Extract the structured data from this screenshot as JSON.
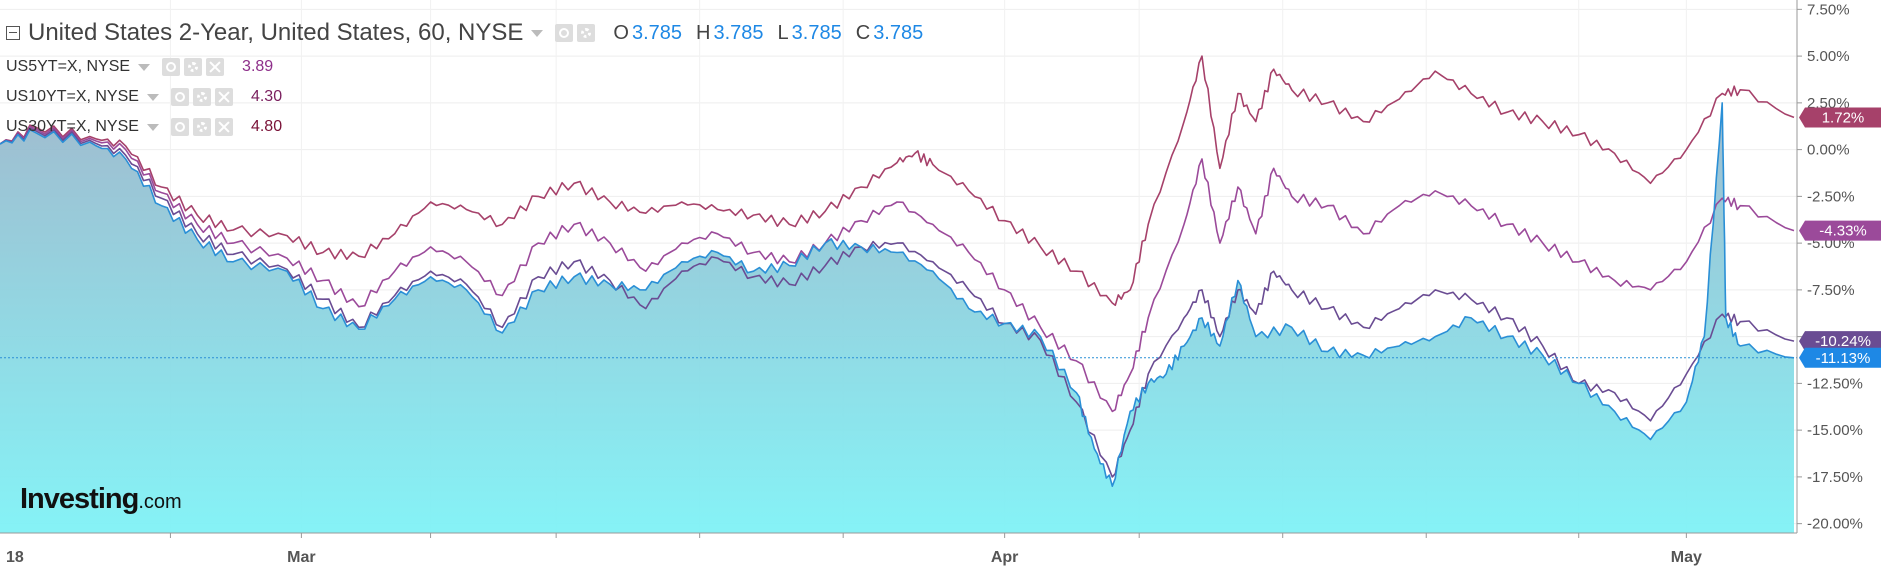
{
  "header": {
    "title": "United States 2-Year, United States, 60, NYSE",
    "ohlc": [
      {
        "key": "O",
        "value": "3.785"
      },
      {
        "key": "H",
        "value": "3.785"
      },
      {
        "key": "L",
        "value": "3.785"
      },
      {
        "key": "C",
        "value": "3.785"
      }
    ]
  },
  "legend": [
    {
      "label": "US5YT=X, NYSE",
      "value": "3.89",
      "color": "#8e2f8a"
    },
    {
      "label": "US10YT=X, NYSE",
      "value": "4.30",
      "color": "#7a1f5e"
    },
    {
      "label": "US30YT=X, NYSE",
      "value": "4.80",
      "color": "#7a1238"
    }
  ],
  "logo": {
    "main": "Investing",
    "domain": ".com"
  },
  "chart_data": {
    "type": "line",
    "y_axis": {
      "ticks": [
        7.5,
        5.0,
        2.5,
        0.0,
        -2.5,
        -5.0,
        -7.5,
        -10.0,
        -12.5,
        -15.0,
        -17.5,
        -20.0
      ],
      "tick_labels": [
        "7.50%",
        "5.00%",
        "2.50%",
        "0.00%",
        "-2.50%",
        "-5.00%",
        "-7.50%",
        "",
        "-12.50%",
        "-15.00%",
        "-17.50%",
        "-20.00%"
      ],
      "ylim": [
        -20.5,
        8.0
      ],
      "position": "right"
    },
    "x_axis": {
      "labels": [
        "18",
        "Mar",
        "Apr",
        "May"
      ],
      "label_positions": [
        0.0,
        0.168,
        0.56,
        0.94
      ],
      "xlim": [
        0,
        1
      ]
    },
    "grid": true,
    "series": [
      {
        "name": "US30YT=X, NYSE",
        "color": "#a6416a",
        "last_label": "1.72%",
        "last_value": 1.72,
        "points": [
          [
            0,
            0.3
          ],
          [
            0.02,
            1.2
          ],
          [
            0.05,
            0.7
          ],
          [
            0.07,
            0.2
          ],
          [
            0.09,
            -2.0
          ],
          [
            0.11,
            -3.5
          ],
          [
            0.13,
            -4.3
          ],
          [
            0.16,
            -4.6
          ],
          [
            0.18,
            -5.5
          ],
          [
            0.2,
            -5.7
          ],
          [
            0.22,
            -4.5
          ],
          [
            0.24,
            -2.8
          ],
          [
            0.26,
            -3.2
          ],
          [
            0.28,
            -4.0
          ],
          [
            0.3,
            -2.5
          ],
          [
            0.32,
            -1.8
          ],
          [
            0.34,
            -2.8
          ],
          [
            0.36,
            -3.4
          ],
          [
            0.38,
            -2.8
          ],
          [
            0.4,
            -3.2
          ],
          [
            0.42,
            -3.5
          ],
          [
            0.44,
            -4.0
          ],
          [
            0.46,
            -3.3
          ],
          [
            0.48,
            -2.0
          ],
          [
            0.5,
            -0.7
          ],
          [
            0.51,
            -0.2
          ],
          [
            0.52,
            -0.8
          ],
          [
            0.54,
            -2.2
          ],
          [
            0.56,
            -3.8
          ],
          [
            0.58,
            -5.2
          ],
          [
            0.6,
            -6.5
          ],
          [
            0.62,
            -8.2
          ],
          [
            0.63,
            -7.5
          ],
          [
            0.64,
            -4.0
          ],
          [
            0.66,
            1.5
          ],
          [
            0.67,
            5.0
          ],
          [
            0.68,
            -1.0
          ],
          [
            0.69,
            3.0
          ],
          [
            0.7,
            1.5
          ],
          [
            0.71,
            4.3
          ],
          [
            0.72,
            3.2
          ],
          [
            0.74,
            2.5
          ],
          [
            0.76,
            1.5
          ],
          [
            0.78,
            2.7
          ],
          [
            0.8,
            4.2
          ],
          [
            0.82,
            3.0
          ],
          [
            0.84,
            2.0
          ],
          [
            0.86,
            1.5
          ],
          [
            0.88,
            0.8
          ],
          [
            0.9,
            -0.2
          ],
          [
            0.92,
            -1.8
          ],
          [
            0.94,
            0.0
          ],
          [
            0.96,
            3.0
          ],
          [
            0.97,
            3.2
          ],
          [
            1.0,
            1.72
          ]
        ]
      },
      {
        "name": "US10YT=X, NYSE",
        "color": "#9b4a9a",
        "last_label": "-4.33%",
        "last_value": -4.33,
        "points": [
          [
            0,
            0.3
          ],
          [
            0.02,
            1.1
          ],
          [
            0.05,
            0.6
          ],
          [
            0.07,
            0.0
          ],
          [
            0.09,
            -2.3
          ],
          [
            0.11,
            -4.0
          ],
          [
            0.13,
            -5.0
          ],
          [
            0.16,
            -5.8
          ],
          [
            0.18,
            -7.0
          ],
          [
            0.2,
            -8.4
          ],
          [
            0.22,
            -6.5
          ],
          [
            0.24,
            -5.2
          ],
          [
            0.26,
            -6.0
          ],
          [
            0.28,
            -7.8
          ],
          [
            0.3,
            -5.0
          ],
          [
            0.32,
            -4.0
          ],
          [
            0.34,
            -5.0
          ],
          [
            0.36,
            -6.5
          ],
          [
            0.38,
            -5.0
          ],
          [
            0.4,
            -4.5
          ],
          [
            0.42,
            -5.5
          ],
          [
            0.44,
            -6.0
          ],
          [
            0.46,
            -5.0
          ],
          [
            0.48,
            -3.8
          ],
          [
            0.5,
            -2.8
          ],
          [
            0.52,
            -4.0
          ],
          [
            0.54,
            -5.5
          ],
          [
            0.56,
            -7.5
          ],
          [
            0.58,
            -9.5
          ],
          [
            0.6,
            -11.3
          ],
          [
            0.62,
            -14.0
          ],
          [
            0.63,
            -12.0
          ],
          [
            0.64,
            -9.0
          ],
          [
            0.66,
            -4.0
          ],
          [
            0.67,
            -0.5
          ],
          [
            0.68,
            -5.0
          ],
          [
            0.69,
            -2.0
          ],
          [
            0.7,
            -4.5
          ],
          [
            0.71,
            -1.0
          ],
          [
            0.72,
            -2.5
          ],
          [
            0.74,
            -3.0
          ],
          [
            0.76,
            -4.5
          ],
          [
            0.78,
            -3.0
          ],
          [
            0.8,
            -2.2
          ],
          [
            0.82,
            -3.0
          ],
          [
            0.84,
            -4.0
          ],
          [
            0.86,
            -5.0
          ],
          [
            0.88,
            -6.0
          ],
          [
            0.9,
            -7.0
          ],
          [
            0.92,
            -7.5
          ],
          [
            0.94,
            -6.0
          ],
          [
            0.96,
            -2.6
          ],
          [
            0.97,
            -3.0
          ],
          [
            1.0,
            -4.33
          ]
        ]
      },
      {
        "name": "US5YT=X, NYSE",
        "color": "#6a4c93",
        "last_label": "-10.24%",
        "last_value": -10.24,
        "points": [
          [
            0,
            0.3
          ],
          [
            0.02,
            1.0
          ],
          [
            0.05,
            0.5
          ],
          [
            0.07,
            -0.3
          ],
          [
            0.09,
            -2.6
          ],
          [
            0.11,
            -4.5
          ],
          [
            0.13,
            -5.6
          ],
          [
            0.16,
            -6.4
          ],
          [
            0.18,
            -8.0
          ],
          [
            0.2,
            -9.5
          ],
          [
            0.22,
            -7.8
          ],
          [
            0.24,
            -6.5
          ],
          [
            0.26,
            -7.2
          ],
          [
            0.28,
            -9.5
          ],
          [
            0.3,
            -6.8
          ],
          [
            0.32,
            -6.0
          ],
          [
            0.34,
            -7.0
          ],
          [
            0.36,
            -8.5
          ],
          [
            0.38,
            -6.5
          ],
          [
            0.4,
            -5.8
          ],
          [
            0.42,
            -6.8
          ],
          [
            0.44,
            -7.2
          ],
          [
            0.46,
            -6.2
          ],
          [
            0.48,
            -5.2
          ],
          [
            0.5,
            -5.0
          ],
          [
            0.52,
            -6.0
          ],
          [
            0.54,
            -7.5
          ],
          [
            0.56,
            -9.3
          ],
          [
            0.58,
            -10.2
          ],
          [
            0.6,
            -13.5
          ],
          [
            0.62,
            -17.5
          ],
          [
            0.63,
            -15.0
          ],
          [
            0.64,
            -12.0
          ],
          [
            0.66,
            -9.0
          ],
          [
            0.67,
            -7.5
          ],
          [
            0.68,
            -10.0
          ],
          [
            0.69,
            -7.5
          ],
          [
            0.7,
            -8.8
          ],
          [
            0.71,
            -6.5
          ],
          [
            0.72,
            -7.5
          ],
          [
            0.74,
            -8.5
          ],
          [
            0.76,
            -9.5
          ],
          [
            0.78,
            -8.5
          ],
          [
            0.8,
            -7.5
          ],
          [
            0.82,
            -8.0
          ],
          [
            0.84,
            -9.0
          ],
          [
            0.86,
            -10.5
          ],
          [
            0.88,
            -12.5
          ],
          [
            0.9,
            -13.0
          ],
          [
            0.92,
            -14.5
          ],
          [
            0.94,
            -12.0
          ],
          [
            0.96,
            -8.8
          ],
          [
            0.97,
            -9.2
          ],
          [
            1.0,
            -10.24
          ]
        ]
      },
      {
        "name": "United States 2-Year, United States, 60, NYSE",
        "color": "#2a8fd6",
        "area": true,
        "last_label": "-11.13%",
        "last_value": -11.13,
        "points": [
          [
            0,
            0.3
          ],
          [
            0.02,
            0.9
          ],
          [
            0.05,
            0.4
          ],
          [
            0.07,
            -0.5
          ],
          [
            0.09,
            -3.0
          ],
          [
            0.11,
            -4.8
          ],
          [
            0.13,
            -6.0
          ],
          [
            0.16,
            -6.5
          ],
          [
            0.18,
            -8.5
          ],
          [
            0.2,
            -9.6
          ],
          [
            0.22,
            -8.0
          ],
          [
            0.24,
            -6.8
          ],
          [
            0.26,
            -7.5
          ],
          [
            0.28,
            -9.8
          ],
          [
            0.3,
            -7.5
          ],
          [
            0.32,
            -6.8
          ],
          [
            0.34,
            -7.2
          ],
          [
            0.36,
            -7.5
          ],
          [
            0.38,
            -6.0
          ],
          [
            0.4,
            -5.5
          ],
          [
            0.42,
            -6.5
          ],
          [
            0.44,
            -6.2
          ],
          [
            0.46,
            -5.0
          ],
          [
            0.48,
            -5.2
          ],
          [
            0.5,
            -5.5
          ],
          [
            0.52,
            -6.5
          ],
          [
            0.54,
            -8.5
          ],
          [
            0.56,
            -9.3
          ],
          [
            0.58,
            -10.0
          ],
          [
            0.6,
            -13.0
          ],
          [
            0.61,
            -16.0
          ],
          [
            0.62,
            -18.0
          ],
          [
            0.63,
            -14.0
          ],
          [
            0.64,
            -12.5
          ],
          [
            0.65,
            -12.0
          ],
          [
            0.66,
            -10.5
          ],
          [
            0.67,
            -9.0
          ],
          [
            0.68,
            -10.5
          ],
          [
            0.69,
            -7.0
          ],
          [
            0.7,
            -10.0
          ],
          [
            0.72,
            -9.5
          ],
          [
            0.74,
            -10.8
          ],
          [
            0.76,
            -11.0
          ],
          [
            0.78,
            -10.5
          ],
          [
            0.8,
            -10.0
          ],
          [
            0.82,
            -9.0
          ],
          [
            0.84,
            -10.0
          ],
          [
            0.86,
            -11.0
          ],
          [
            0.88,
            -12.5
          ],
          [
            0.9,
            -14.0
          ],
          [
            0.92,
            -15.5
          ],
          [
            0.94,
            -13.5
          ],
          [
            0.95,
            -10.0
          ],
          [
            0.96,
            2.5
          ],
          [
            0.962,
            -9.0
          ],
          [
            0.97,
            -10.5
          ],
          [
            1.0,
            -11.13
          ]
        ]
      }
    ]
  }
}
